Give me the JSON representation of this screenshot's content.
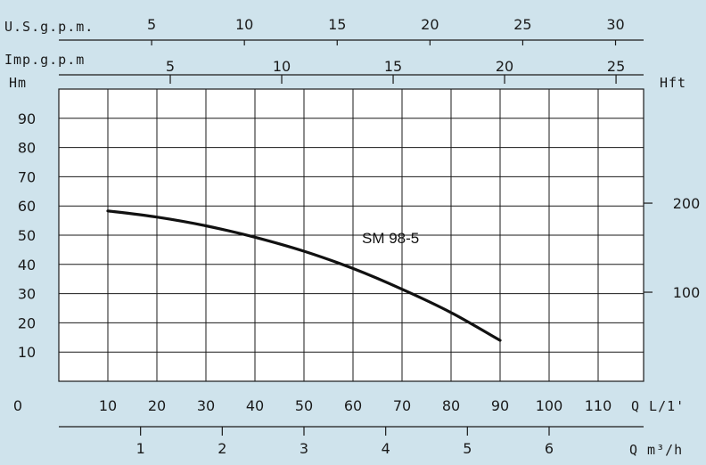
{
  "chart_data": {
    "type": "line",
    "title": "",
    "colors": {
      "background": "#cfe3ec",
      "plot": "#ffffff",
      "grid": "#1a1a1a",
      "curve": "#111111"
    },
    "grid": true,
    "x": [
      10,
      20,
      30,
      40,
      50,
      60,
      70,
      80,
      90
    ],
    "series": [
      {
        "name": "SM 98-5",
        "values": [
          58.3,
          56.2,
          53.2,
          49.3,
          44.5,
          38.6,
          31.5,
          23.5,
          14.0
        ]
      }
    ],
    "axes": {
      "y_left": {
        "label": "Hm",
        "ticks": [
          10,
          20,
          30,
          40,
          50,
          60,
          70,
          80,
          90
        ],
        "range": [
          0,
          100
        ]
      },
      "y_right": {
        "label": "Hft",
        "ticks": [
          100,
          200
        ]
      },
      "x_bottom": {
        "label": "Q L/1'",
        "ticks": [
          10,
          20,
          30,
          40,
          50,
          60,
          70,
          80,
          90,
          100,
          110
        ],
        "zero_label": "0",
        "range": [
          0,
          120
        ]
      },
      "x_m3h": {
        "label": "Q m³/h",
        "ticks": [
          1,
          2,
          3,
          4,
          5,
          6
        ]
      },
      "x_usgpm": {
        "label": "U.S.g.p.m.",
        "ticks": [
          5,
          10,
          15,
          20,
          25,
          30
        ]
      },
      "x_impgpm": {
        "label": "Imp.g.p.m",
        "ticks": [
          5,
          10,
          15,
          20,
          25
        ]
      }
    }
  }
}
